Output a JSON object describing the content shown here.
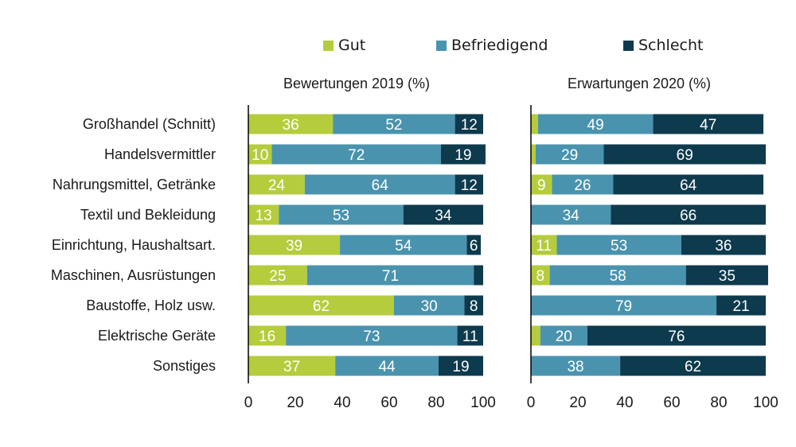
{
  "legend": [
    {
      "name": "Gut",
      "color": "#b5cc3c"
    },
    {
      "name": "Befriedigend",
      "color": "#4a93ae"
    },
    {
      "name": "Schlecht",
      "color": "#0e3a4d"
    }
  ],
  "chart_data": [
    {
      "type": "bar",
      "orientation": "horizontal",
      "stacked": true,
      "title": "Bewertungen 2019 (%)",
      "categories": [
        "Großhandel (Schnitt)",
        "Handelsvermittler",
        "Nahrungsmittel, Getränke",
        "Textil und Bekleidung",
        "Einrichtung, Haushaltsart.",
        "Maschinen, Ausrüstungen",
        "Baustoffe, Holz usw.",
        "Elektrische Geräte",
        "Sonstiges"
      ],
      "xlim": [
        0,
        100
      ],
      "xticks": [
        0,
        20,
        40,
        60,
        80,
        100
      ],
      "series": [
        {
          "name": "Gut",
          "values": [
            36,
            10,
            24,
            13,
            39,
            25,
            62,
            16,
            37
          ],
          "labels": [
            "36",
            "10",
            "24",
            "13",
            "39",
            "25",
            "62",
            "16",
            "37"
          ]
        },
        {
          "name": "Befriedigend",
          "values": [
            52,
            72,
            64,
            53,
            54,
            71,
            30,
            73,
            44
          ],
          "labels": [
            "52",
            "72",
            "64",
            "53",
            "54",
            "71",
            "30",
            "73",
            "44"
          ]
        },
        {
          "name": "Schlecht",
          "values": [
            12,
            19,
            12,
            34,
            6,
            4,
            8,
            11,
            19
          ],
          "labels": [
            "12",
            "19",
            "12",
            "34",
            "6",
            "",
            "8",
            "11",
            "19"
          ]
        }
      ]
    },
    {
      "type": "bar",
      "orientation": "horizontal",
      "stacked": true,
      "title": "Erwartungen 2020 (%)",
      "categories": [
        "Großhandel (Schnitt)",
        "Handelsvermittler",
        "Nahrungsmittel, Getränke",
        "Textil und Bekleidung",
        "Einrichtung, Haushaltsart.",
        "Maschinen, Ausrüstungen",
        "Baustoffe, Holz usw.",
        "Elektrische Geräte",
        "Sonstiges"
      ],
      "xlim": [
        0,
        100
      ],
      "xticks": [
        0,
        20,
        40,
        60,
        80,
        100
      ],
      "series": [
        {
          "name": "Gut",
          "values": [
            3,
            2,
            9,
            0,
            11,
            8,
            0,
            4,
            0
          ],
          "labels": [
            "",
            "",
            "9",
            "",
            "11",
            "8",
            "",
            "",
            ""
          ]
        },
        {
          "name": "Befriedigend",
          "values": [
            49,
            29,
            26,
            34,
            53,
            58,
            79,
            20,
            38
          ],
          "labels": [
            "49",
            "29",
            "26",
            "34",
            "53",
            "58",
            "79",
            "20",
            "38"
          ]
        },
        {
          "name": "Schlecht",
          "values": [
            47,
            69,
            64,
            66,
            36,
            35,
            21,
            76,
            62
          ],
          "labels": [
            "47",
            "69",
            "64",
            "66",
            "36",
            "35",
            "21",
            "76",
            "62"
          ]
        }
      ]
    }
  ]
}
